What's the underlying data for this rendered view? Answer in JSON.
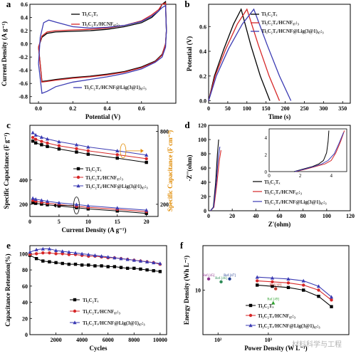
{
  "chart_data": [
    {
      "panel": "a",
      "type": "line",
      "xlabel": "Potential (V)",
      "ylabel": "Current Density (A g⁻¹)",
      "xlim": [
        -0.05,
        0.8
      ],
      "ylim": [
        -0.9,
        0.6
      ],
      "xticks": [
        "0.0",
        "0.2",
        "0.4",
        "0.6"
      ],
      "yticks": [
        "0.6",
        "0.4",
        "0.2",
        "0.0",
        "-0.2",
        "-0.4",
        "-0.6",
        "-0.8"
      ],
      "legend": [
        "Ti₃C₂Tₓ",
        "Ti₃C₂Tₓ/HCNF₉₇:₃",
        "Ti₃C₂Tₓ/HCNF@Lig(3@1)₉₇:₃"
      ],
      "series": [
        {
          "name": "Ti₃C₂Tₓ",
          "color": "#000000",
          "x": [
            0.0,
            0.02,
            0.05,
            0.1,
            0.2,
            0.3,
            0.4,
            0.5,
            0.6,
            0.66,
            0.7,
            0.72,
            0.74,
            0.745,
            0.74,
            0.72,
            0.68,
            0.6,
            0.5,
            0.4,
            0.3,
            0.2,
            0.1,
            0.05,
            0.02,
            0.0
          ],
          "y": [
            -0.05,
            0.1,
            0.16,
            0.18,
            0.19,
            0.2,
            0.22,
            0.26,
            0.32,
            0.4,
            0.5,
            0.6,
            0.64,
            0.2,
            0.0,
            -0.16,
            -0.26,
            -0.35,
            -0.42,
            -0.46,
            -0.49,
            -0.51,
            -0.54,
            -0.56,
            -0.57,
            -0.05
          ]
        },
        {
          "name": "Ti₃C₂Tₓ/HCNF₉₇:₃",
          "color": "#d62728",
          "x": [
            0.0,
            0.02,
            0.05,
            0.1,
            0.2,
            0.3,
            0.4,
            0.5,
            0.6,
            0.66,
            0.7,
            0.72,
            0.74,
            0.745,
            0.74,
            0.72,
            0.68,
            0.6,
            0.5,
            0.4,
            0.3,
            0.2,
            0.1,
            0.05,
            0.02,
            0.0
          ],
          "y": [
            -0.05,
            0.12,
            0.18,
            0.2,
            0.21,
            0.22,
            0.24,
            0.28,
            0.35,
            0.44,
            0.52,
            0.6,
            0.62,
            0.2,
            0.0,
            -0.17,
            -0.27,
            -0.36,
            -0.43,
            -0.47,
            -0.5,
            -0.52,
            -0.55,
            -0.57,
            -0.58,
            -0.05
          ]
        },
        {
          "name": "Ti₃C₂Tₓ/HCNF@Lig(3@1)₉₇:₃",
          "color": "#3b3bb3",
          "x": [
            0.0,
            0.01,
            0.03,
            0.06,
            0.1,
            0.2,
            0.3,
            0.4,
            0.5,
            0.6,
            0.66,
            0.7,
            0.72,
            0.74,
            0.745,
            0.74,
            0.72,
            0.68,
            0.6,
            0.5,
            0.4,
            0.3,
            0.2,
            0.1,
            0.05,
            0.02,
            0.0
          ],
          "y": [
            -0.3,
            0.1,
            0.32,
            0.36,
            0.33,
            0.26,
            0.24,
            0.25,
            0.28,
            0.34,
            0.42,
            0.5,
            0.55,
            0.58,
            0.2,
            -0.05,
            -0.2,
            -0.28,
            -0.38,
            -0.45,
            -0.5,
            -0.54,
            -0.58,
            -0.65,
            -0.72,
            -0.75,
            -0.3
          ]
        }
      ]
    },
    {
      "panel": "b",
      "type": "line",
      "xlabel": "Time (s)",
      "ylabel": "Potential (V)",
      "xlim": [
        0,
        370
      ],
      "ylim": [
        -0.02,
        0.78
      ],
      "xticks": [
        "0",
        "50",
        "100",
        "150",
        "200",
        "250",
        "300",
        "350"
      ],
      "yticks": [
        "0.0",
        "0.2",
        "0.4",
        "0.6"
      ],
      "legend": [
        "Ti₃C₂Tₓ",
        "Ti₃C₂Tₓ/HCNF₉₇:₃",
        "Ti₃C₂Tₓ/HCNF@Lig(3@1)₉₇:₃"
      ],
      "series": [
        {
          "name": "Ti₃C₂Tₓ",
          "color": "#000000",
          "x": [
            0,
            15,
            40,
            65,
            85,
            110,
            135,
            160
          ],
          "y": [
            0.0,
            0.2,
            0.42,
            0.62,
            0.74,
            0.45,
            0.2,
            0.0
          ]
        },
        {
          "name": "Ti₃C₂Tₓ/HCNF₉₇:₃",
          "color": "#d62728",
          "x": [
            0,
            17,
            45,
            75,
            100,
            130,
            158,
            185
          ],
          "y": [
            0.0,
            0.2,
            0.42,
            0.62,
            0.74,
            0.45,
            0.2,
            0.0
          ]
        },
        {
          "name": "Ti₃C₂Tₓ/HCNF@Lig(3@1)₉₇:₃",
          "color": "#3b3bb3",
          "x": [
            0,
            20,
            52,
            88,
            118,
            153,
            185,
            215
          ],
          "y": [
            0.0,
            0.2,
            0.42,
            0.62,
            0.74,
            0.45,
            0.2,
            0.0
          ]
        }
      ]
    },
    {
      "panel": "c",
      "type": "line",
      "xlabel": "Current Density (A g⁻¹)",
      "ylabel": "Specific Capacitance (F g⁻¹)",
      "ylabel_right": "Specific Capacitance (F cm⁻³)",
      "xlim": [
        0,
        22
      ],
      "ylim": [
        100,
        850
      ],
      "xticks": [
        "0",
        "5",
        "10",
        "15",
        "20"
      ],
      "yticks_left": [
        "200",
        "400"
      ],
      "yticks_right": [
        "200",
        "800"
      ],
      "legend": [
        "Ti₃C₂Tₓ",
        "Ti₃C₂Tₓ/HCNF₉₇:₃",
        "Ti₃C₂Tₓ/HCNF@Lig(3@1)₉₇:₃"
      ],
      "x": [
        0.5,
        1,
        2,
        3,
        5,
        8,
        10,
        15,
        20
      ],
      "series": [
        {
          "name": "Ti₃C₂Tₓ",
          "color": "#000000",
          "marker": "square",
          "axis": "left",
          "values": [
            213,
            208,
            202,
            196,
            186,
            172,
            162,
            145,
            125
          ]
        },
        {
          "name": "Ti₃C₂Tₓ/HCNF₉₇:₃",
          "color": "#d62728",
          "marker": "circle",
          "axis": "left",
          "values": [
            232,
            225,
            217,
            210,
            198,
            184,
            175,
            158,
            140
          ]
        },
        {
          "name": "Ti₃C₂Tₓ/HCNF@Lig(3@1)₉₇:₃",
          "color": "#3b3bb3",
          "marker": "triangle",
          "axis": "left",
          "values": [
            250,
            242,
            233,
            225,
            212,
            198,
            188,
            170,
            152
          ]
        },
        {
          "name": "",
          "color": "#000000",
          "marker": "square",
          "axis": "right",
          "values": [
            720,
            705,
            690,
            676,
            655,
            630,
            612,
            580,
            545
          ]
        },
        {
          "name": "",
          "color": "#d62728",
          "marker": "circle",
          "axis": "right",
          "values": [
            750,
            735,
            718,
            704,
            682,
            658,
            640,
            608,
            575
          ]
        },
        {
          "name": "",
          "color": "#3b3bb3",
          "marker": "triangle",
          "axis": "right",
          "values": [
            790,
            770,
            752,
            738,
            715,
            690,
            672,
            640,
            605
          ]
        }
      ]
    },
    {
      "panel": "d",
      "type": "line",
      "xlabel": "Z'(ohm)",
      "ylabel": "-Z''(ohm)",
      "xlim": [
        0,
        120
      ],
      "ylim": [
        0,
        120
      ],
      "xticks": [
        "0",
        "20",
        "40",
        "60",
        "80",
        "100",
        "120"
      ],
      "yticks": [
        "0",
        "20",
        "40",
        "60",
        "80",
        "100",
        "120"
      ],
      "legend": [
        "Ti₃C₂Tₓ",
        "Ti₃C₂Tₓ/HCNF₉₇:₃",
        "Ti₃C₂Tₓ/HCNF@Lig(3@1)₉₇:₃"
      ],
      "series": [
        {
          "name": "Ti₃C₂Tₓ",
          "color": "#000000",
          "x": [
            1.5,
            4,
            6,
            7.5,
            8.5
          ],
          "y": [
            0,
            5,
            40,
            80,
            100
          ]
        },
        {
          "name": "Ti₃C₂Tₓ/HCNF₉₇:₃",
          "color": "#d62728",
          "x": [
            1.7,
            4.5,
            7,
            9,
            10.5
          ],
          "y": [
            0,
            5,
            38,
            70,
            85
          ]
        },
        {
          "name": "Ti₃C₂Tₓ/HCNF@Lig(3@1)₉₇:₃",
          "color": "#3b3bb3",
          "x": [
            1.6,
            4.2,
            6.5,
            8.2,
            9.5
          ],
          "y": [
            0,
            5,
            40,
            75,
            90
          ]
        }
      ],
      "inset": {
        "xlim": [
          0,
          5
        ],
        "ylim": [
          0,
          5
        ],
        "xticks": [
          "0",
          "2",
          "4"
        ],
        "yticks": [
          "0",
          "2",
          "4"
        ],
        "series": [
          {
            "color": "#000000",
            "x": [
              1.6,
              2.2,
              2.8,
              3.2,
              3.5,
              3.7,
              3.8,
              3.85
            ],
            "y": [
              0.0,
              0.3,
              0.6,
              0.9,
              1.3,
              2.2,
              3.5,
              4.8
            ]
          },
          {
            "color": "#d62728",
            "x": [
              1.7,
              2.4,
              3.0,
              3.6,
              4.0,
              4.3,
              4.6,
              4.85
            ],
            "y": [
              0.0,
              0.3,
              0.6,
              0.9,
              1.3,
              2.2,
              3.5,
              4.8
            ]
          },
          {
            "color": "#3b3bb3",
            "x": [
              1.65,
              2.3,
              2.9,
              3.4,
              3.8,
              4.2,
              4.5,
              4.8
            ],
            "y": [
              0.0,
              0.3,
              0.6,
              0.9,
              1.3,
              2.1,
              3.3,
              4.6
            ]
          }
        ]
      }
    },
    {
      "panel": "e",
      "type": "line",
      "xlabel": "Cycles",
      "ylabel": "Capacitance Retention(%)",
      "xlim": [
        0,
        10500
      ],
      "ylim": [
        0,
        110
      ],
      "xticks": [
        "2000",
        "4000",
        "6000",
        "8000",
        "10000"
      ],
      "yticks": [
        "0",
        "20",
        "40",
        "60",
        "80",
        "100"
      ],
      "legend": [
        "Ti₃C₂Tₓ",
        "Ti₃C₂Tₓ/HCNF₉₇:₃",
        "Ti₃C₂Tₓ/HCNF@Lig(3@1)₉₇:₃"
      ],
      "series": [
        {
          "name": "Ti₃C₂Tₓ",
          "color": "#000000",
          "marker": "square",
          "x": [
            0,
            500,
            1000,
            1500,
            2000,
            2500,
            3000,
            3500,
            4000,
            4500,
            5000,
            5500,
            6000,
            6500,
            7000,
            7500,
            8000,
            8500,
            9000,
            9500,
            10000
          ],
          "y": [
            98,
            94,
            91,
            90,
            89,
            88,
            87,
            87,
            86,
            86,
            85,
            85,
            84,
            84,
            83,
            82,
            82,
            81,
            80,
            79,
            78
          ]
        },
        {
          "name": "Ti₃C₂Tₓ/HCNF₉₇:₃",
          "color": "#d62728",
          "marker": "circle",
          "x": [
            0,
            500,
            1000,
            1500,
            2000,
            2500,
            3000,
            3500,
            4000,
            4500,
            5000,
            5500,
            6000,
            6500,
            7000,
            7500,
            8000,
            8500,
            9000,
            9500,
            10000
          ],
          "y": [
            99,
            100,
            101,
            101,
            100,
            100,
            99,
            99,
            98,
            97,
            97,
            96,
            95,
            95,
            94,
            93,
            92,
            91,
            90,
            89,
            87
          ]
        },
        {
          "name": "Ti₃C₂Tₓ/HCNF@Lig(3@1)₉₇:₃",
          "color": "#3b3bb3",
          "marker": "triangle",
          "x": [
            0,
            500,
            1000,
            1500,
            2000,
            2500,
            3000,
            3500,
            4000,
            4500,
            5000,
            5500,
            6000,
            6500,
            7000,
            7500,
            8000,
            8500,
            9000,
            9500,
            10000
          ],
          "y": [
            102,
            105,
            106,
            106,
            104,
            103,
            102,
            101,
            100,
            99,
            98,
            97,
            96,
            95,
            94,
            93,
            92,
            91,
            90,
            89,
            88
          ]
        }
      ]
    },
    {
      "panel": "f",
      "type": "line",
      "xlabel": "Power Density (W L⁻¹)",
      "ylabel": "Energy Density (Wh L⁻¹)",
      "xscale": "log",
      "yscale": "log",
      "xlim": [
        50,
        40000
      ],
      "ylim": [
        2,
        50
      ],
      "xticks": [
        "10²",
        "10³"
      ],
      "yticks": [
        "10"
      ],
      "legend": [
        "Ti₃C₂Tₓ",
        "Ti₃C₂Tₓ/HCNF₉₇:₃",
        "Ti₃C₂Tₓ/HCNF@Lig(3@1)₉₇:₃"
      ],
      "series": [
        {
          "name": "Ti₃C₂Tₓ",
          "color": "#000000",
          "marker": "square",
          "x": [
            600,
            1200,
            2500,
            5000,
            10000,
            18000
          ],
          "y": [
            12,
            11.5,
            11,
            10,
            8,
            5.5
          ]
        },
        {
          "name": "Ti₃C₂Tₓ/HCNF₉₇:₃",
          "color": "#d62728",
          "marker": "circle",
          "x": [
            600,
            1200,
            2500,
            5000,
            10000,
            18000
          ],
          "y": [
            14,
            13.5,
            13,
            12,
            10,
            7
          ]
        },
        {
          "name": "Ti₃C₂Tₓ/HCNF@Lig(3@1)₉₇:₃",
          "color": "#3b3bb3",
          "marker": "triangle",
          "x": [
            600,
            1200,
            2500,
            5000,
            10000,
            18000
          ],
          "y": [
            16,
            15.5,
            15,
            14,
            11.5,
            7.8
          ]
        }
      ],
      "references": [
        {
          "label": "Ref.[45]",
          "color": "#8b2f8b",
          "x": 65,
          "y": 15
        },
        {
          "label": "Ref.[46]",
          "color": "#2e8b57",
          "x": 115,
          "y": 13.5
        },
        {
          "label": "Ref.[47]",
          "color": "#1f3b8f",
          "x": 170,
          "y": 15
        },
        {
          "label": "Ref.[48]",
          "color": "#c0392b",
          "x": 1400,
          "y": 10.5
        },
        {
          "label": "Ref.[49]",
          "color": "#2ca02c",
          "x": 1250,
          "y": 6.3
        }
      ],
      "watermark": "材料科学与工程"
    }
  ]
}
